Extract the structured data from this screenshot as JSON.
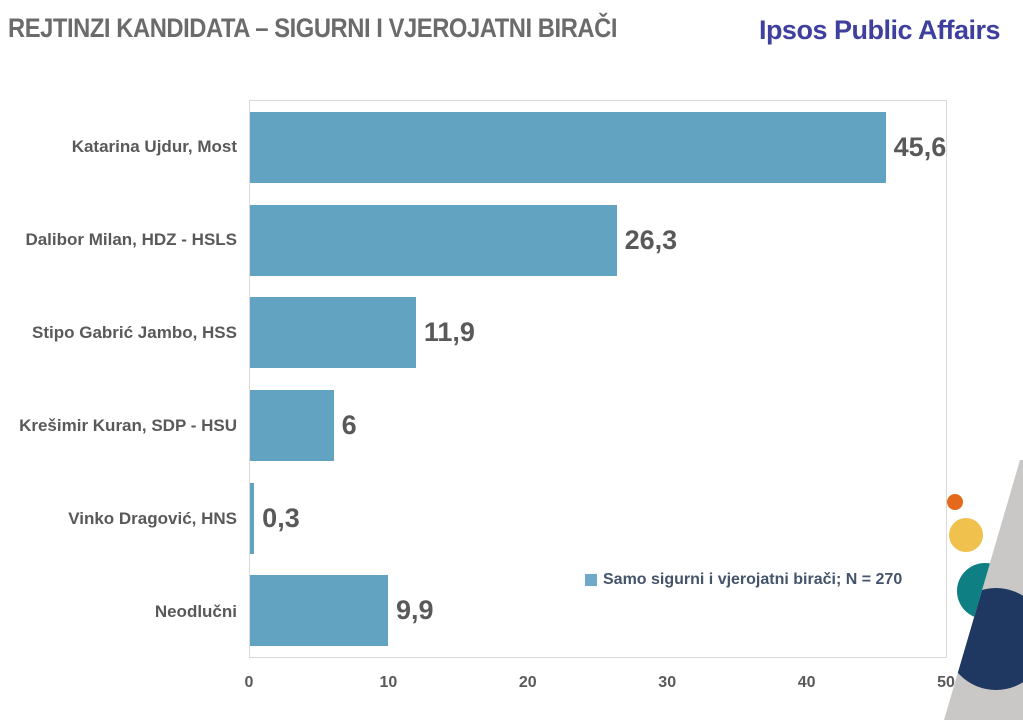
{
  "header": {
    "title": "REJTINZI KANDIDATA – SIGURNI I VJEROJATNI BIRAČI",
    "logo": "Ipsos Public Affairs"
  },
  "chart_data": {
    "type": "bar",
    "orientation": "horizontal",
    "title": "REJTINZI KANDIDATA – SIGURNI I VJEROJATNI BIRAČI",
    "categories": [
      "Katarina Ujdur, Most",
      "Dalibor Milan, HDZ - HSLS",
      "Stipo Gabrić Jambo, HSS",
      "Krešimir Kuran, SDP - HSU",
      "Vinko Dragović, HNS",
      "Neodlučni"
    ],
    "values": [
      45.6,
      26.3,
      11.9,
      6,
      0.3,
      9.9
    ],
    "value_labels": [
      "45,6",
      "26,3",
      "11,9",
      "6",
      "0,3",
      "9,9"
    ],
    "xlim": [
      0,
      50
    ],
    "x_ticks": [
      "0",
      "10",
      "20",
      "30",
      "40",
      "50"
    ],
    "grid": false,
    "legend": {
      "label": "Samo sigurni i vjerojatni birači; N = 270",
      "position": "inside-bottom-right"
    }
  },
  "colors": {
    "bar": "#62A3C2",
    "legend_marker": "#6FA9C9",
    "legend_text": "#44546A",
    "title_text": "#6B6B6B",
    "logo_blue": "#3F3F9E",
    "axis_text": "#595959",
    "value_text": "#595959",
    "category_text": "#595959",
    "plot_border": "#D9D9D9",
    "deco_gray": "#C9C8C6",
    "deco_orange": "#E5691B",
    "deco_yellow": "#F0C24D",
    "deco_teal": "#0E7F82",
    "deco_navy": "#1F3862"
  }
}
